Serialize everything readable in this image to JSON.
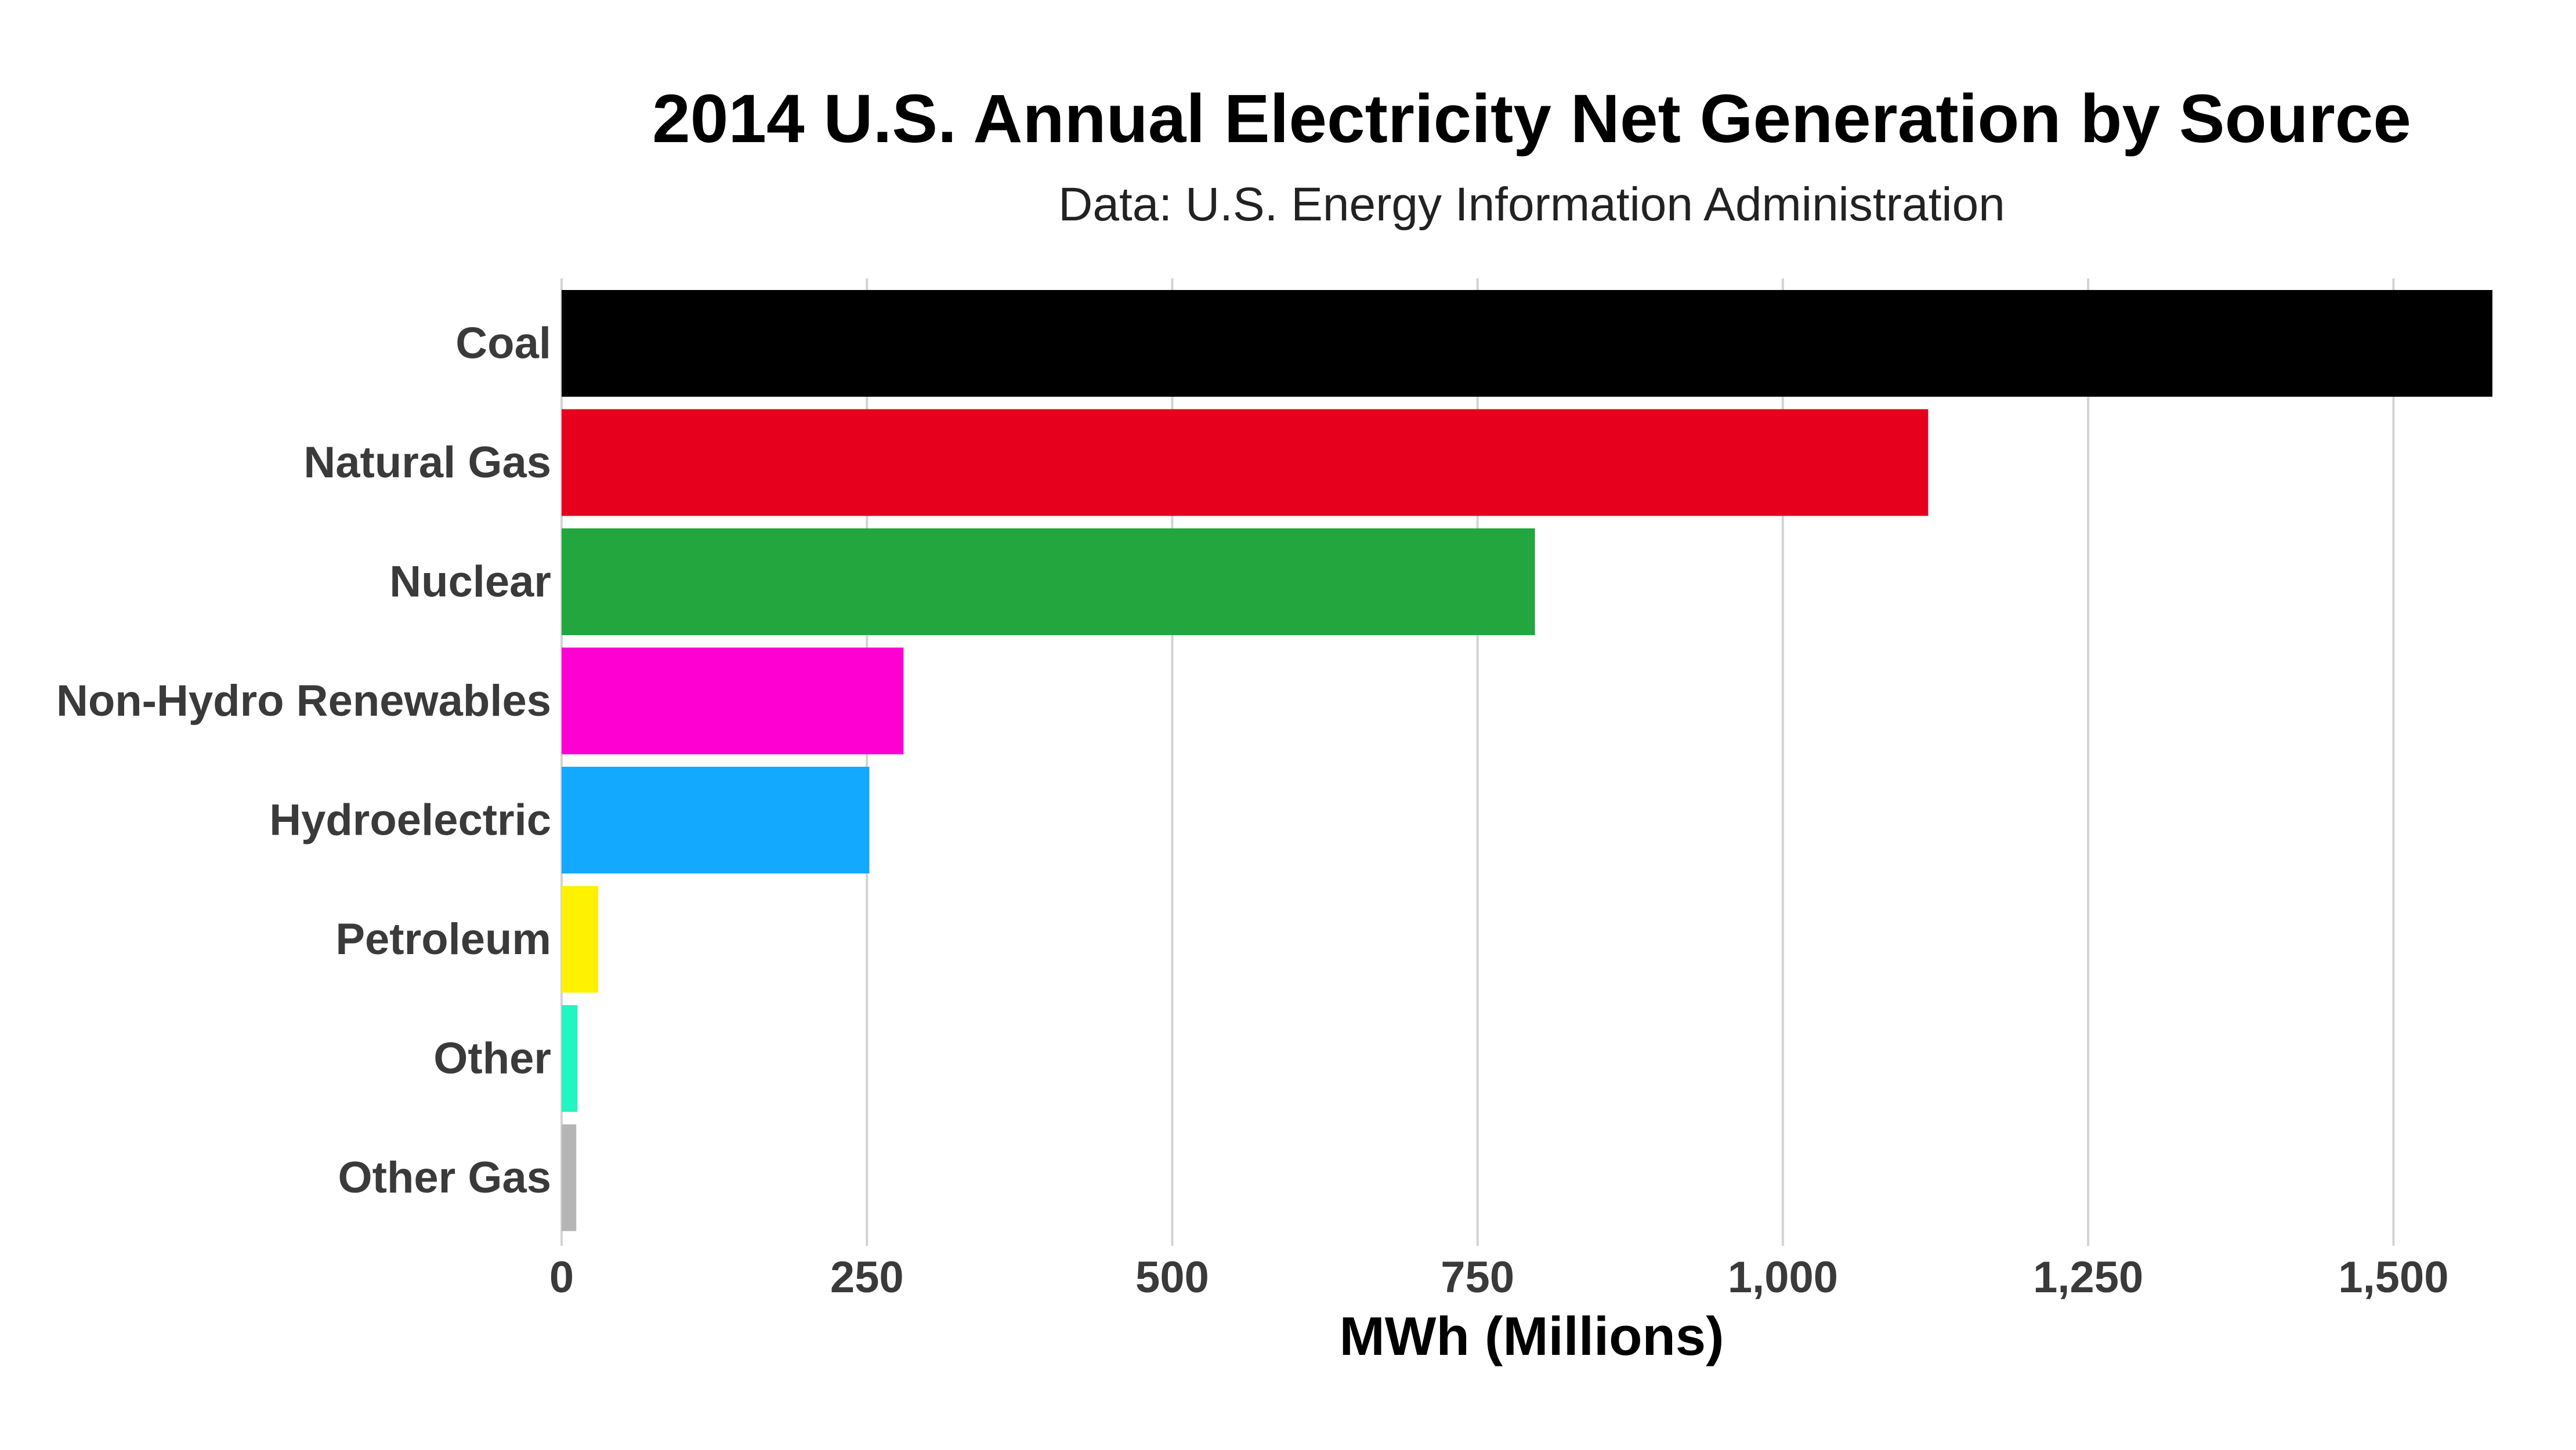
{
  "chart_data": {
    "type": "bar",
    "orientation": "horizontal",
    "title": "2014 U.S. Annual Electricity Net Generation by Source",
    "subtitle": "Data: U.S. Energy Information Administration",
    "xlabel": "MWh (Millions)",
    "ylabel": "",
    "xlim": [
      0,
      1582
    ],
    "x_ticks": [
      0,
      250,
      500,
      750,
      1000,
      1250,
      1500
    ],
    "x_tick_labels": [
      "0",
      "250",
      "500",
      "750",
      "1,000",
      "1,250",
      "1,500"
    ],
    "grid": true,
    "legend": "none",
    "categories": [
      "Coal",
      "Natural Gas",
      "Nuclear",
      "Non-Hydro Renewables",
      "Hydroelectric",
      "Petroleum",
      "Other",
      "Other Gas"
    ],
    "values": [
      1581,
      1119,
      797,
      280,
      252,
      30,
      13,
      12
    ],
    "colors": [
      "#000000",
      "#e6001e",
      "#22a63d",
      "#ff00d2",
      "#12a9ff",
      "#fff200",
      "#22f5c1",
      "#b5b5b5"
    ]
  }
}
